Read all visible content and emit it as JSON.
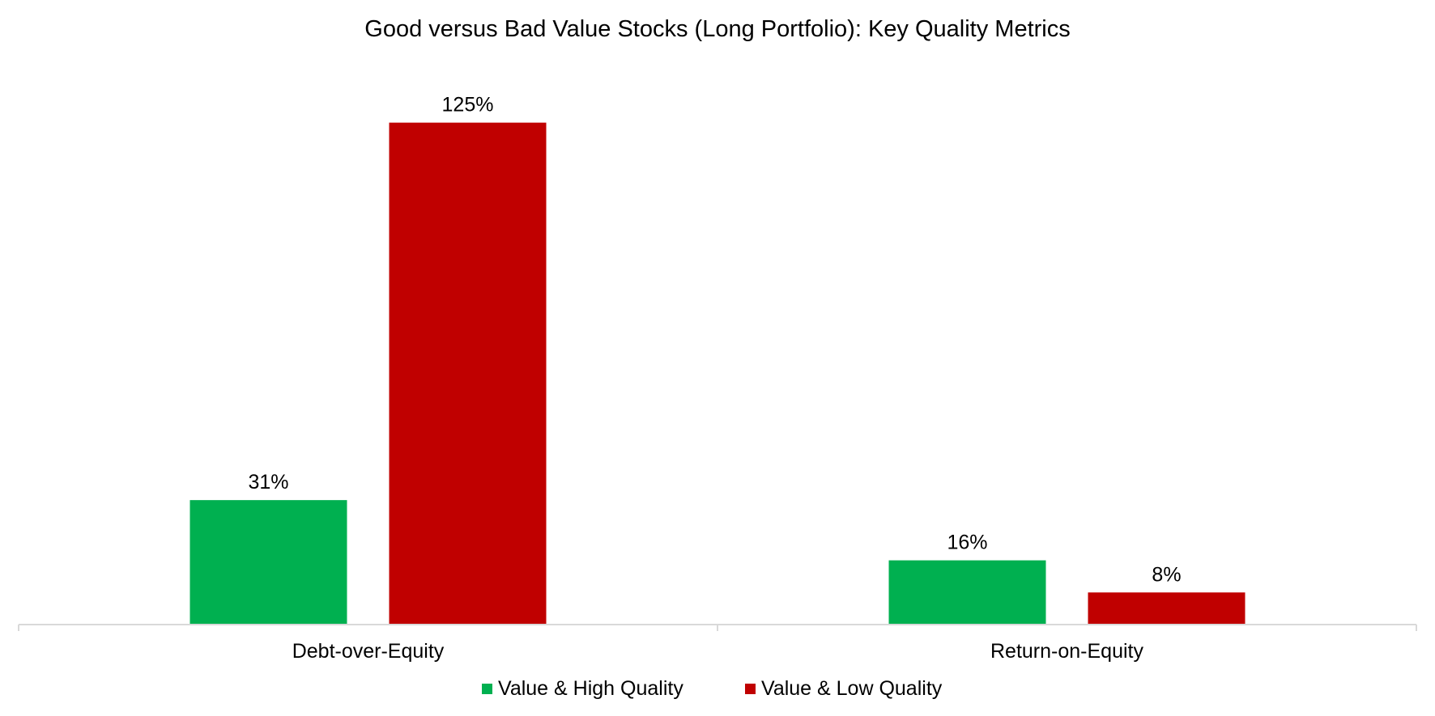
{
  "chart_data": {
    "type": "bar",
    "title": "Good versus Bad Value Stocks (Long Portfolio): Key Quality Metrics",
    "categories": [
      "Debt-over-Equity",
      "Return-on-Equity"
    ],
    "series": [
      {
        "name": "Value & High Quality",
        "color": "#00B050",
        "values": [
          31,
          16
        ],
        "labels": [
          "31%",
          "16%"
        ]
      },
      {
        "name": "Value & Low Quality",
        "color": "#C00000",
        "values": [
          125,
          8
        ],
        "labels": [
          "125%",
          "8%"
        ]
      }
    ],
    "unit": "%",
    "ylim": [
      0,
      140
    ],
    "grid": false,
    "legend_position": "bottom",
    "axis_color": "#D9D9D9"
  }
}
